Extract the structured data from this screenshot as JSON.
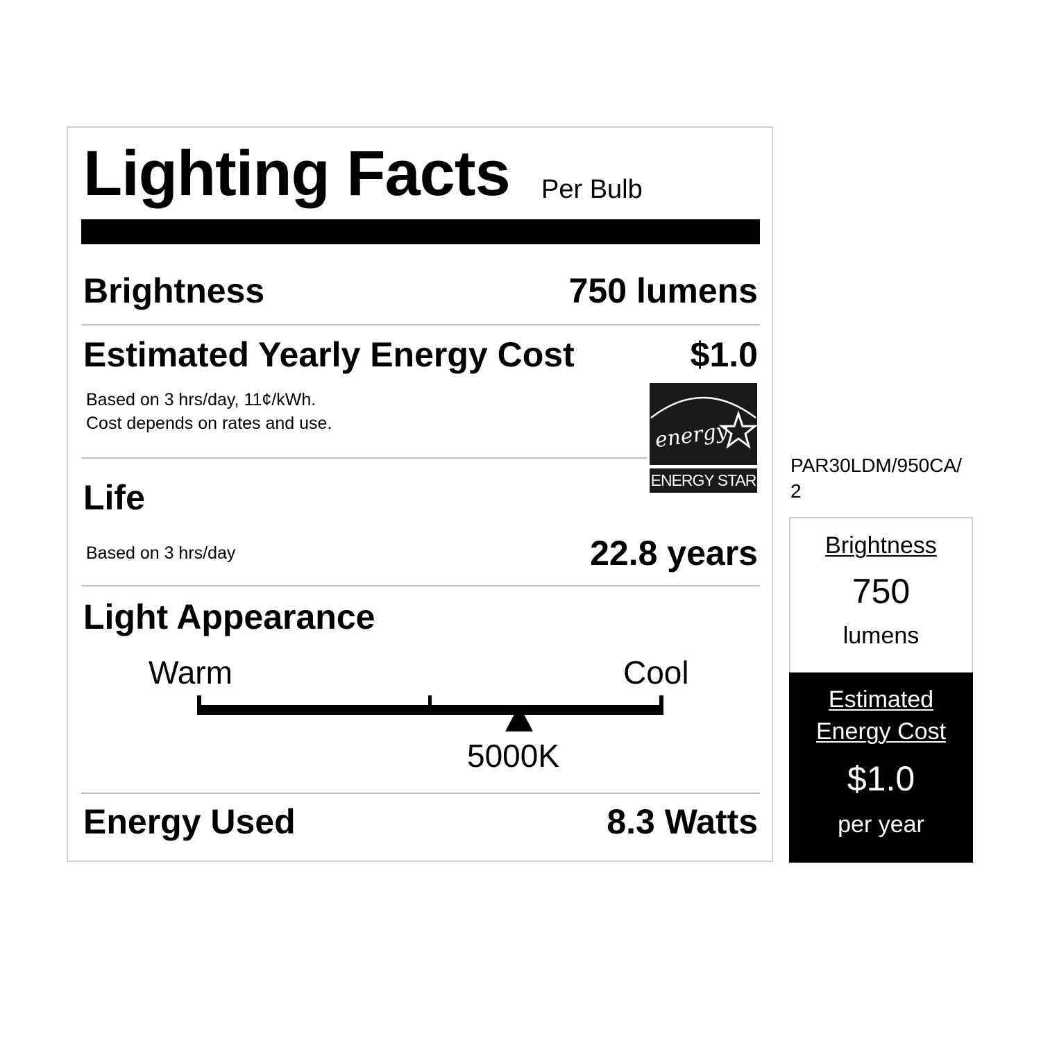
{
  "label": {
    "title": "Lighting Facts",
    "per": "Per Bulb",
    "brightness": {
      "label": "Brightness",
      "value": "750 lumens"
    },
    "cost": {
      "label": "Estimated Yearly Energy Cost",
      "value": "$1.0",
      "note1": "Based on 3 hrs/day, 11¢/kWh.",
      "note2": "Cost depends on rates and use."
    },
    "life": {
      "label": "Life",
      "note": "Based on 3 hrs/day",
      "value": "22.8 years"
    },
    "appearance": {
      "label": "Light Appearance",
      "warm": "Warm",
      "cool": "Cool",
      "value": "5000K",
      "marker_fraction": 0.69
    },
    "energy": {
      "label": "Energy Used",
      "value": "8.3 Watts"
    },
    "energy_star": {
      "script": "energy",
      "text": "ENERGY STAR"
    }
  },
  "model": {
    "line1": "PAR30LDM/950CA/",
    "line2": "2"
  },
  "side": {
    "brightness_label": "Brightness",
    "brightness_value": "750",
    "brightness_unit": "lumens",
    "cost_label1": "Estimated",
    "cost_label2": "Energy Cost",
    "cost_value": "$1.0",
    "cost_unit": "per year"
  }
}
